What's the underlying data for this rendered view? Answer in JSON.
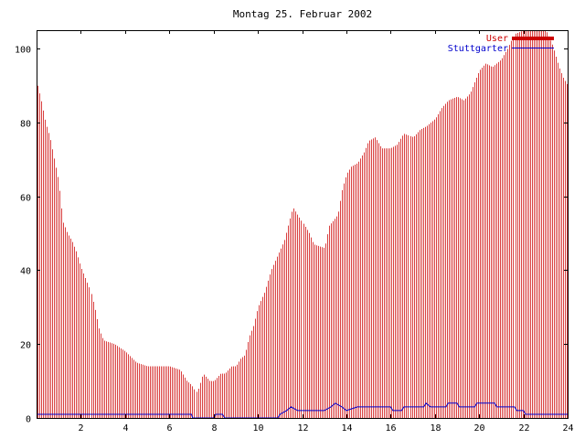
{
  "chart_data": {
    "type": "bar",
    "title": "Montag 25. Februar 2002",
    "xlabel": "",
    "ylabel": "",
    "xlim": [
      0,
      24
    ],
    "ylim": [
      0,
      105
    ],
    "xticks": [
      2,
      4,
      6,
      8,
      10,
      12,
      14,
      16,
      18,
      20,
      22,
      24
    ],
    "yticks": [
      0,
      20,
      40,
      60,
      80,
      100
    ],
    "grid": false,
    "legend_position": "top-right",
    "series": [
      {
        "name": "User",
        "type": "bar",
        "color": "#cc0000",
        "knots": [
          [
            0.0,
            91
          ],
          [
            0.2,
            86
          ],
          [
            0.4,
            80
          ],
          [
            0.6,
            76
          ],
          [
            0.8,
            70
          ],
          [
            1.0,
            64
          ],
          [
            1.1,
            58
          ],
          [
            1.2,
            53
          ],
          [
            1.4,
            50
          ],
          [
            1.6,
            48
          ],
          [
            1.8,
            45
          ],
          [
            2.0,
            41
          ],
          [
            2.2,
            38
          ],
          [
            2.4,
            35
          ],
          [
            2.6,
            30
          ],
          [
            2.8,
            24
          ],
          [
            3.0,
            21
          ],
          [
            3.5,
            20
          ],
          [
            4.0,
            18
          ],
          [
            4.5,
            15
          ],
          [
            5.0,
            14
          ],
          [
            5.5,
            14
          ],
          [
            6.0,
            14
          ],
          [
            6.5,
            13
          ],
          [
            6.8,
            10
          ],
          [
            7.0,
            9
          ],
          [
            7.2,
            7
          ],
          [
            7.3,
            8
          ],
          [
            7.5,
            12
          ],
          [
            7.8,
            10
          ],
          [
            8.0,
            10
          ],
          [
            8.3,
            12
          ],
          [
            8.5,
            12
          ],
          [
            8.8,
            14
          ],
          [
            9.0,
            14
          ],
          [
            9.2,
            16
          ],
          [
            9.4,
            17
          ],
          [
            9.6,
            22
          ],
          [
            9.8,
            25
          ],
          [
            10.0,
            30
          ],
          [
            10.3,
            34
          ],
          [
            10.6,
            40
          ],
          [
            10.9,
            44
          ],
          [
            11.2,
            48
          ],
          [
            11.5,
            55
          ],
          [
            11.6,
            57
          ],
          [
            12.0,
            53
          ],
          [
            12.3,
            50
          ],
          [
            12.5,
            47
          ],
          [
            13.0,
            46
          ],
          [
            13.2,
            52
          ],
          [
            13.6,
            55
          ],
          [
            13.8,
            62
          ],
          [
            14.0,
            66
          ],
          [
            14.2,
            68
          ],
          [
            14.5,
            69
          ],
          [
            14.8,
            72
          ],
          [
            15.0,
            75
          ],
          [
            15.3,
            76
          ],
          [
            15.6,
            73
          ],
          [
            16.0,
            73
          ],
          [
            16.3,
            74
          ],
          [
            16.6,
            77
          ],
          [
            17.0,
            76
          ],
          [
            17.3,
            78
          ],
          [
            17.6,
            79
          ],
          [
            18.0,
            81
          ],
          [
            18.3,
            84
          ],
          [
            18.6,
            86
          ],
          [
            19.0,
            87
          ],
          [
            19.3,
            86
          ],
          [
            19.6,
            88
          ],
          [
            20.0,
            94
          ],
          [
            20.3,
            96
          ],
          [
            20.6,
            95
          ],
          [
            21.0,
            97
          ],
          [
            21.3,
            100
          ],
          [
            21.6,
            104
          ],
          [
            22.0,
            105
          ],
          [
            22.5,
            105
          ],
          [
            23.0,
            105
          ],
          [
            23.3,
            101
          ],
          [
            23.6,
            95
          ],
          [
            23.8,
            92
          ],
          [
            24.0,
            90
          ]
        ]
      },
      {
        "name": "Stuttgarter",
        "type": "line",
        "color": "#0000cc",
        "points": [
          [
            0.0,
            1
          ],
          [
            7.0,
            1
          ],
          [
            7.05,
            0
          ],
          [
            8.0,
            0
          ],
          [
            8.1,
            1
          ],
          [
            8.4,
            1
          ],
          [
            8.5,
            0
          ],
          [
            10.9,
            0
          ],
          [
            11.0,
            1
          ],
          [
            11.3,
            2
          ],
          [
            11.5,
            3
          ],
          [
            11.8,
            2
          ],
          [
            13.0,
            2
          ],
          [
            13.3,
            3
          ],
          [
            13.5,
            4
          ],
          [
            13.8,
            3
          ],
          [
            14.0,
            2
          ],
          [
            14.5,
            3
          ],
          [
            16.0,
            3
          ],
          [
            16.1,
            2
          ],
          [
            16.5,
            2
          ],
          [
            16.6,
            3
          ],
          [
            17.5,
            3
          ],
          [
            17.6,
            4
          ],
          [
            17.8,
            3
          ],
          [
            18.5,
            3
          ],
          [
            18.6,
            4
          ],
          [
            19.0,
            4
          ],
          [
            19.1,
            3
          ],
          [
            19.8,
            3
          ],
          [
            19.9,
            4
          ],
          [
            20.7,
            4
          ],
          [
            20.8,
            3
          ],
          [
            21.6,
            3
          ],
          [
            21.7,
            2
          ],
          [
            22.0,
            2
          ],
          [
            22.1,
            1
          ],
          [
            24.0,
            1
          ]
        ]
      }
    ]
  }
}
